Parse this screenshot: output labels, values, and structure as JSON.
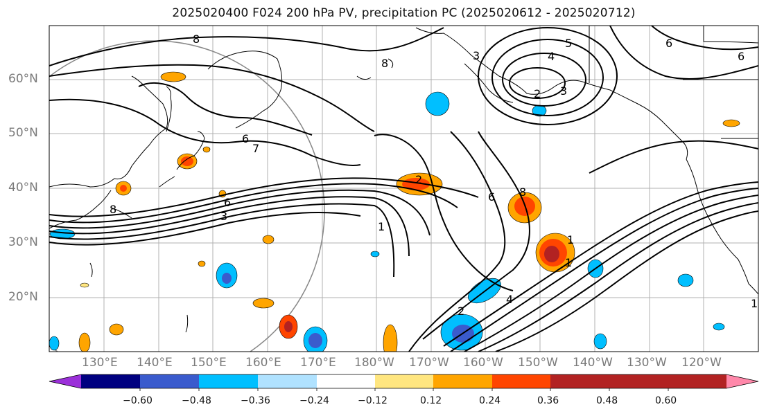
{
  "title": "2025020400 F024 200 hPa PV, precipitation PC (2025020612 - 2025020712)",
  "lat_labels": [
    "60°N",
    "50°N",
    "40°N",
    "30°N",
    "20°N"
  ],
  "lon_labels": [
    "130°E",
    "140°E",
    "150°E",
    "160°E",
    "170°E",
    "180°W",
    "170°W",
    "160°W",
    "150°W",
    "140°W",
    "130°W",
    "120°W"
  ],
  "contour_labels": [
    "8",
    "8",
    "3",
    "5",
    "4",
    "3",
    "2",
    "6",
    "7",
    "6",
    "6",
    "3",
    "6",
    "8",
    "8",
    "1",
    "1",
    "1",
    "2",
    "2",
    "4",
    "1",
    "6"
  ],
  "colorbar": {
    "tick_labels": [
      "−0.60",
      "−0.48",
      "−0.36",
      "−0.24",
      "−0.12",
      "0.12",
      "0.24",
      "0.36",
      "0.48",
      "0.60"
    ],
    "colors": [
      "#9b30d9",
      "#000080",
      "#3a5bcd",
      "#00bfff",
      "#b0e2ff",
      "#ffffff",
      "#ffe680",
      "#ffa500",
      "#ff4500",
      "#b22222",
      "#ff88aa"
    ]
  }
}
